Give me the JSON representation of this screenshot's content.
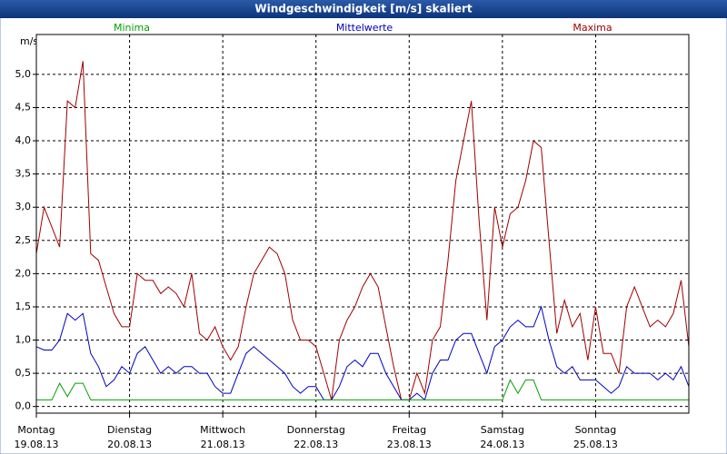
{
  "chart_data": {
    "type": "line",
    "title": "Windgeschwindigkeit [m/s] skaliert",
    "y_label": "m/s",
    "x": [
      0,
      2,
      4,
      6,
      8,
      10,
      12,
      14,
      16,
      18,
      20,
      22,
      24,
      26,
      28,
      30,
      32,
      34,
      36,
      38,
      40,
      42,
      44,
      46,
      48,
      50,
      52,
      54,
      56,
      58,
      60,
      62,
      64,
      66,
      68,
      70,
      72,
      74,
      76,
      78,
      80,
      82,
      84,
      86,
      88,
      90,
      92,
      94,
      96,
      98,
      100,
      102,
      104,
      106,
      108,
      110,
      112,
      114,
      116,
      118,
      120,
      122,
      124,
      126,
      128,
      130,
      132,
      134,
      136,
      138,
      140,
      142,
      144,
      146,
      148,
      150,
      152,
      154,
      156,
      158,
      160,
      162,
      164,
      166,
      168
    ],
    "xlim": [
      0,
      168
    ],
    "xticks": [
      {
        "value": 0,
        "label": "Montag"
      },
      {
        "value": 24,
        "label": "Dienstag"
      },
      {
        "value": 48,
        "label": "Mittwoch"
      },
      {
        "value": 72,
        "label": "Donnerstag"
      },
      {
        "value": 96,
        "label": "Freitag"
      },
      {
        "value": 120,
        "label": "Samstag"
      },
      {
        "value": 144,
        "label": "Sonntag"
      }
    ],
    "xtick_dates": [
      "19.08.13",
      "20.08.13",
      "21.08.13",
      "22.08.13",
      "23.08.13",
      "24.08.13",
      "25.08.13"
    ],
    "ylim": [
      -0.1,
      5.6
    ],
    "yticks": [
      {
        "value": 0,
        "label": "0,0"
      },
      {
        "value": 0.5,
        "label": "0,5"
      },
      {
        "value": 1,
        "label": "1,0"
      },
      {
        "value": 1.5,
        "label": "1,5"
      },
      {
        "value": 2,
        "label": "2,0"
      },
      {
        "value": 2.5,
        "label": "2,5"
      },
      {
        "value": 3,
        "label": "3,0"
      },
      {
        "value": 3.5,
        "label": "3,5"
      },
      {
        "value": 4,
        "label": "4,0"
      },
      {
        "value": 4.5,
        "label": "4,5"
      },
      {
        "value": 5,
        "label": "5,0"
      }
    ],
    "grid": true,
    "series": [
      {
        "name": "Minima",
        "color": "#00a000",
        "values": [
          0.1,
          0.1,
          0.1,
          0.35,
          0.15,
          0.35,
          0.35,
          0.1,
          0.1,
          0.1,
          0.1,
          0.1,
          0.1,
          0.1,
          0.1,
          0.1,
          0.1,
          0.1,
          0.1,
          0.1,
          0.1,
          0.1,
          0.1,
          0.1,
          0.1,
          0.1,
          0.1,
          0.1,
          0.1,
          0.1,
          0.1,
          0.1,
          0.1,
          0.1,
          0.1,
          0.1,
          0.1,
          0.1,
          0.1,
          0.1,
          0.1,
          0.1,
          0.1,
          0.1,
          0.1,
          0.1,
          0.1,
          0.1,
          0.1,
          0.1,
          0.1,
          0.1,
          0.1,
          0.1,
          0.1,
          0.1,
          0.1,
          0.1,
          0.1,
          0.1,
          0.1,
          0.4,
          0.2,
          0.4,
          0.4,
          0.1,
          0.1,
          0.1,
          0.1,
          0.1,
          0.1,
          0.1,
          0.1,
          0.1,
          0.1,
          0.1,
          0.1,
          0.1,
          0.1,
          0.1,
          0.1,
          0.1,
          0.1,
          0.1,
          0.1
        ]
      },
      {
        "name": "Mittelwerte",
        "color": "#0000c0",
        "values": [
          0.9,
          0.85,
          0.85,
          1.0,
          1.4,
          1.3,
          1.4,
          0.8,
          0.6,
          0.3,
          0.4,
          0.6,
          0.5,
          0.8,
          0.9,
          0.7,
          0.5,
          0.6,
          0.5,
          0.6,
          0.6,
          0.5,
          0.5,
          0.3,
          0.2,
          0.2,
          0.5,
          0.8,
          0.9,
          0.8,
          0.7,
          0.6,
          0.5,
          0.3,
          0.2,
          0.3,
          0.3,
          0.1,
          0.1,
          0.3,
          0.6,
          0.7,
          0.6,
          0.8,
          0.8,
          0.5,
          0.3,
          0.1,
          0.1,
          0.2,
          0.1,
          0.5,
          0.7,
          0.7,
          1.0,
          1.1,
          1.1,
          0.8,
          0.5,
          0.9,
          1.0,
          1.2,
          1.3,
          1.2,
          1.2,
          1.5,
          1.0,
          0.6,
          0.5,
          0.6,
          0.4,
          0.4,
          0.4,
          0.3,
          0.2,
          0.3,
          0.6,
          0.5,
          0.5,
          0.5,
          0.4,
          0.5,
          0.4,
          0.6,
          0.3
        ]
      },
      {
        "name": "Maxima",
        "color": "#a00000",
        "values": [
          2.3,
          3.0,
          2.7,
          2.4,
          4.6,
          4.5,
          5.2,
          2.3,
          2.2,
          1.8,
          1.4,
          1.2,
          1.2,
          2.0,
          1.9,
          1.9,
          1.7,
          1.8,
          1.7,
          1.5,
          2.0,
          1.1,
          1.0,
          1.2,
          0.9,
          0.7,
          0.9,
          1.5,
          2.0,
          2.2,
          2.4,
          2.3,
          2.0,
          1.3,
          1.0,
          1.0,
          0.9,
          0.5,
          0.1,
          1.0,
          1.3,
          1.5,
          1.8,
          2.0,
          1.8,
          1.2,
          0.6,
          0.1,
          0.1,
          0.5,
          0.2,
          1.0,
          1.2,
          2.2,
          3.4,
          4.0,
          4.6,
          2.8,
          1.3,
          3.0,
          2.4,
          2.9,
          3.0,
          3.4,
          4.0,
          3.9,
          2.5,
          1.1,
          1.6,
          1.2,
          1.4,
          0.7,
          1.5,
          0.8,
          0.8,
          0.5,
          1.5,
          1.8,
          1.5,
          1.2,
          1.3,
          1.2,
          1.4,
          1.9,
          0.9
        ]
      }
    ]
  }
}
